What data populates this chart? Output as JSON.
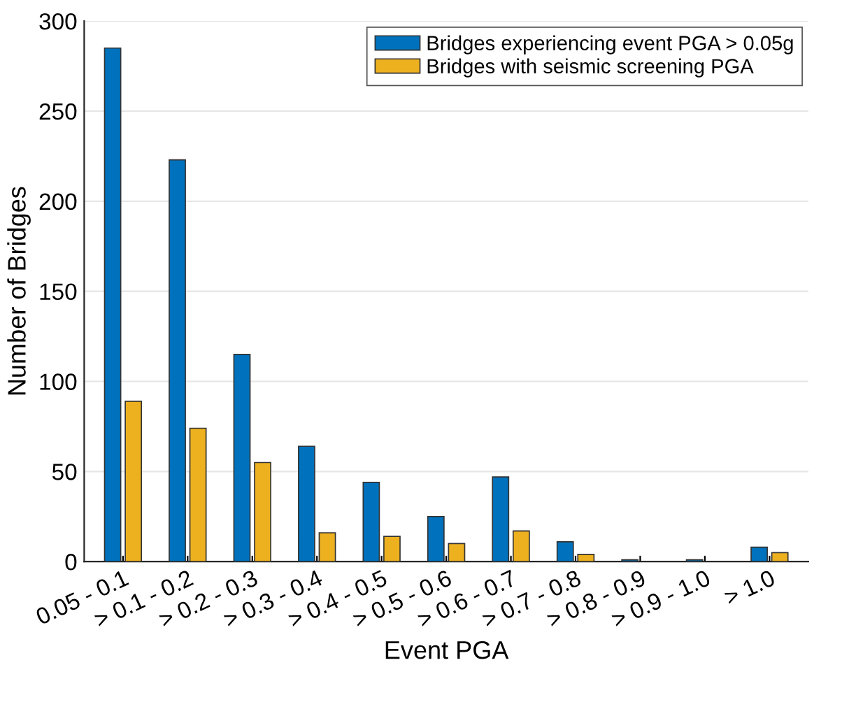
{
  "chart_data": {
    "type": "bar",
    "xlabel": "Event PGA",
    "ylabel": "Number of Bridges",
    "categories": [
      "0.05 - 0.1",
      "> 0.1 - 0.2",
      "> 0.2 - 0.3",
      "> 0.3 - 0.4",
      "> 0.4 - 0.5",
      "> 0.5 - 0.6",
      "> 0.6 - 0.7",
      "> 0.7 - 0.8",
      "> 0.8 - 0.9",
      "> 0.9 - 1.0",
      "> 1.0"
    ],
    "series": [
      {
        "name": "Bridges experiencing event PGA > 0.05g",
        "color": "#0072bd",
        "values": [
          285,
          223,
          115,
          64,
          44,
          25,
          47,
          11,
          1,
          1,
          8
        ]
      },
      {
        "name": "Bridges with seismic screening PGA",
        "color": "#edb120",
        "values": [
          89,
          74,
          55,
          16,
          14,
          10,
          17,
          4,
          0,
          0,
          5
        ]
      }
    ],
    "ylim": [
      0,
      300
    ],
    "yticks": [
      0,
      50,
      100,
      150,
      200,
      250,
      300
    ],
    "grid": "y",
    "legend": "top right"
  }
}
